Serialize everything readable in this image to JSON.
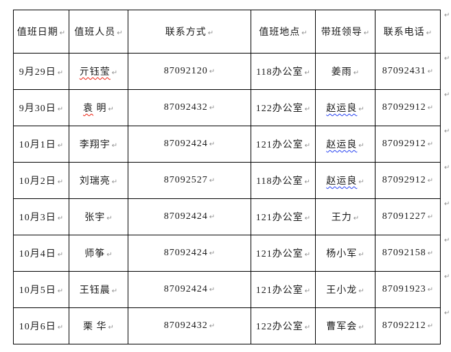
{
  "document": {
    "paragraph_mark": "↵",
    "colors": {
      "background": "#ffffff",
      "text": "#1a1a1a",
      "table_border": "#000000",
      "formatting_mark": "#8f8f8f",
      "spellcheck_squiggle": "#ee1c0c",
      "grammar_squiggle": "#2440f0"
    }
  },
  "table": {
    "columns": [
      {
        "key": "date",
        "label": "值班日期"
      },
      {
        "key": "person",
        "label": "值班人员"
      },
      {
        "key": "contact",
        "label": "联系方式"
      },
      {
        "key": "location",
        "label": "值班地点"
      },
      {
        "key": "leader",
        "label": "带班领导"
      },
      {
        "key": "phone",
        "label": "联系电话"
      }
    ],
    "rows": [
      {
        "date": "9月29日",
        "person": "亓钰莹",
        "person_squiggle": "red",
        "contact": "87092120",
        "location": "118办公室",
        "leader": "姜雨",
        "leader_squiggle": "",
        "phone": "87092431"
      },
      {
        "date": "9月30日",
        "person": "袁 明",
        "person_squiggle": "red:1",
        "contact": "87092432",
        "location": "122办公室",
        "leader": "赵运良",
        "leader_squiggle": "blue",
        "phone": "87092912"
      },
      {
        "date": "10月1日",
        "person": "李翔宇",
        "person_squiggle": "",
        "contact": "87092424",
        "location": "121办公室",
        "leader": "赵运良",
        "leader_squiggle": "blue",
        "phone": "87092912"
      },
      {
        "date": "10月2日",
        "person": "刘瑞亮",
        "person_squiggle": "",
        "contact": "87092527",
        "location": "118办公室",
        "leader": "赵运良",
        "leader_squiggle": "blue",
        "phone": "87092912"
      },
      {
        "date": "10月3日",
        "person": "张宇",
        "person_squiggle": "",
        "contact": "87092424",
        "location": "121办公室",
        "leader": "王力",
        "leader_squiggle": "",
        "phone": "87091227"
      },
      {
        "date": "10月4日",
        "person": "师筝",
        "person_squiggle": "",
        "contact": "87092424",
        "location": "121办公室",
        "leader": "杨小军",
        "leader_squiggle": "",
        "phone": "87092158"
      },
      {
        "date": "10月5日",
        "person": "王钰晨",
        "person_squiggle": "",
        "contact": "87092424",
        "location": "121办公室",
        "leader": "王小龙",
        "leader_squiggle": "",
        "phone": "87091923"
      },
      {
        "date": "10月6日",
        "person": "栗 华",
        "person_squiggle": "",
        "contact": "87092432",
        "location": "122办公室",
        "leader": "曹军会",
        "leader_squiggle": "",
        "phone": "87092212"
      }
    ]
  }
}
